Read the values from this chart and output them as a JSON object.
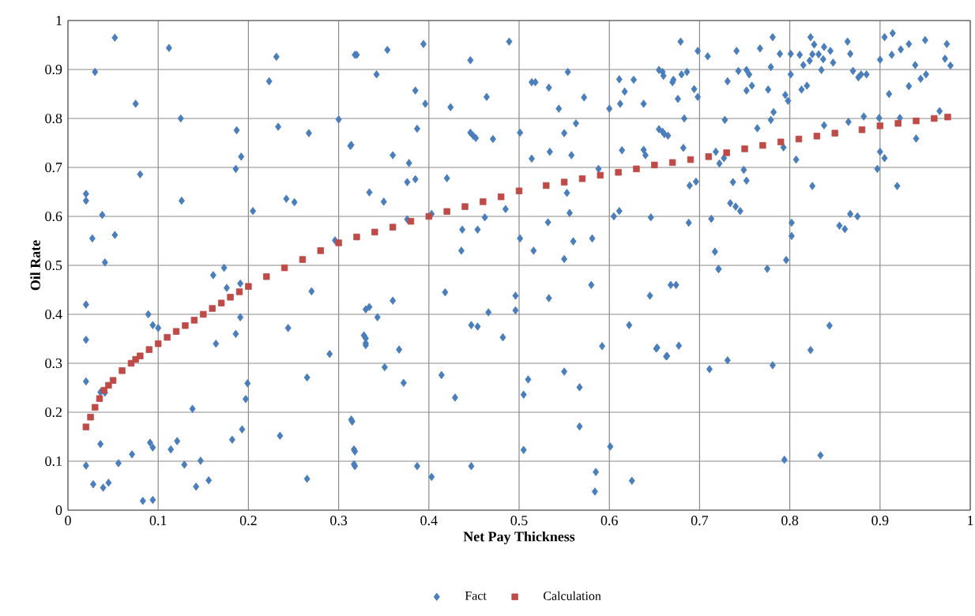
{
  "chart_data": {
    "type": "scatter",
    "xlabel": "Net Pay Thickness",
    "ylabel": "Oil Rate",
    "xlim": [
      0,
      1
    ],
    "ylim": [
      0,
      1
    ],
    "xticks": [
      0,
      0.1,
      0.2,
      0.3,
      0.4,
      0.5,
      0.6,
      0.7,
      0.8,
      0.9,
      1
    ],
    "yticks": [
      0,
      0.1,
      0.2,
      0.3,
      0.4,
      0.5,
      0.6,
      0.7,
      0.8,
      0.9,
      1
    ],
    "grid": true,
    "legend": "bottom",
    "series": [
      {
        "name": "Fact",
        "color": "#4a7ebb",
        "marker": "diamond",
        "x": [
          0.052,
          0.03,
          0.075,
          0.08,
          0.02,
          0.02,
          0.038,
          0.027,
          0.052,
          0.041,
          0.112,
          0.125,
          0.126,
          0.187,
          0.192,
          0.186,
          0.205,
          0.173,
          0.161,
          0.223,
          0.231,
          0.233,
          0.267,
          0.242,
          0.251,
          0.3,
          0.313,
          0.318,
          0.296,
          0.02,
          0.02,
          0.02,
          0.036,
          0.041,
          0.036,
          0.02,
          0.028,
          0.039,
          0.045,
          0.056,
          0.071,
          0.089,
          0.094,
          0.1,
          0.091,
          0.094,
          0.083,
          0.094,
          0.114,
          0.121,
          0.129,
          0.138,
          0.147,
          0.142,
          0.156,
          0.164,
          0.176,
          0.191,
          0.186,
          0.191,
          0.182,
          0.193,
          0.197,
          0.199,
          0.235,
          0.244,
          0.265,
          0.27,
          0.265,
          0.29,
          0.315,
          0.318,
          0.318,
          0.33,
          0.33,
          0.33,
          0.32,
          0.354,
          0.394,
          0.342,
          0.385,
          0.396,
          0.424,
          0.446,
          0.464,
          0.489,
          0.314,
          0.387,
          0.36,
          0.378,
          0.376,
          0.385,
          0.334,
          0.35,
          0.42,
          0.446,
          0.452,
          0.449,
          0.471,
          0.501,
          0.514,
          0.518,
          0.533,
          0.554,
          0.544,
          0.572,
          0.563,
          0.55,
          0.534,
          0.514,
          0.558,
          0.588,
          0.6,
          0.611,
          0.617,
          0.612,
          0.627,
          0.638,
          0.614,
          0.638,
          0.64,
          0.655,
          0.66,
          0.655,
          0.661,
          0.67,
          0.376,
          0.403,
          0.437,
          0.454,
          0.462,
          0.436,
          0.485,
          0.501,
          0.516,
          0.532,
          0.553,
          0.556,
          0.56,
          0.55,
          0.581,
          0.605,
          0.611,
          0.646,
          0.334,
          0.343,
          0.36,
          0.328,
          0.33,
          0.367,
          0.351,
          0.372,
          0.314,
          0.317,
          0.317,
          0.387,
          0.403,
          0.418,
          0.414,
          0.429,
          0.447,
          0.454,
          0.447,
          0.466,
          0.482,
          0.496,
          0.496,
          0.533,
          0.505,
          0.51,
          0.505,
          0.55,
          0.567,
          0.567,
          0.58,
          0.592,
          0.601,
          0.585,
          0.584,
          0.625,
          0.622,
          0.645,
          0.652,
          0.663,
          0.668,
          0.679,
          0.659,
          0.671,
          0.68,
          0.686,
          0.698,
          0.709,
          0.694,
          0.698,
          0.676,
          0.683,
          0.659,
          0.665,
          0.682,
          0.689,
          0.696,
          0.688,
          0.713,
          0.717,
          0.721,
          0.718,
          0.722,
          0.727,
          0.728,
          0.731,
          0.741,
          0.743,
          0.752,
          0.755,
          0.752,
          0.758,
          0.764,
          0.767,
          0.776,
          0.781,
          0.779,
          0.779,
          0.782,
          0.789,
          0.801,
          0.811,
          0.795,
          0.798,
          0.801,
          0.793,
          0.807,
          0.825,
          0.749,
          0.737,
          0.752,
          0.734,
          0.74,
          0.745,
          0.802,
          0.802,
          0.796,
          0.775,
          0.813,
          0.819,
          0.815,
          0.822,
          0.823,
          0.827,
          0.825,
          0.832,
          0.837,
          0.835,
          0.838,
          0.845,
          0.848,
          0.864,
          0.867,
          0.838,
          0.865,
          0.87,
          0.879,
          0.885,
          0.876,
          0.855,
          0.861,
          0.867,
          0.875,
          0.882,
          0.899,
          0.9,
          0.905,
          0.914,
          0.913,
          0.923,
          0.932,
          0.91,
          0.932,
          0.945,
          0.951,
          0.939,
          0.95,
          0.922,
          0.966,
          0.94,
          0.9,
          0.905,
          0.897,
          0.919,
          0.972,
          0.978,
          0.974,
          0.674,
          0.721,
          0.653,
          0.664,
          0.677,
          0.711,
          0.731,
          0.781,
          0.823,
          0.844,
          0.794,
          0.834
        ],
        "values": [
          0.965,
          0.895,
          0.83,
          0.686,
          0.646,
          0.632,
          0.603,
          0.555,
          0.562,
          0.506,
          0.944,
          0.8,
          0.632,
          0.776,
          0.722,
          0.697,
          0.611,
          0.495,
          0.48,
          0.876,
          0.926,
          0.783,
          0.77,
          0.636,
          0.629,
          0.798,
          0.744,
          0.93,
          0.551,
          0.42,
          0.348,
          0.263,
          0.241,
          0.24,
          0.135,
          0.091,
          0.053,
          0.046,
          0.056,
          0.096,
          0.114,
          0.4,
          0.378,
          0.372,
          0.138,
          0.128,
          0.019,
          0.021,
          0.124,
          0.141,
          0.093,
          0.207,
          0.101,
          0.048,
          0.061,
          0.34,
          0.454,
          0.463,
          0.36,
          0.394,
          0.144,
          0.165,
          0.227,
          0.259,
          0.152,
          0.372,
          0.271,
          0.447,
          0.064,
          0.319,
          0.181,
          0.12,
          0.09,
          0.41,
          0.351,
          0.337,
          0.93,
          0.94,
          0.952,
          0.89,
          0.857,
          0.83,
          0.823,
          0.919,
          0.844,
          0.957,
          0.746,
          0.779,
          0.725,
          0.709,
          0.67,
          0.676,
          0.649,
          0.63,
          0.678,
          0.771,
          0.76,
          0.765,
          0.758,
          0.771,
          0.874,
          0.874,
          0.863,
          0.895,
          0.82,
          0.843,
          0.79,
          0.77,
          0.732,
          0.718,
          0.725,
          0.697,
          0.82,
          0.88,
          0.855,
          0.83,
          0.879,
          0.83,
          0.735,
          0.736,
          0.725,
          0.899,
          0.887,
          0.778,
          0.768,
          0.874,
          0.594,
          0.605,
          0.573,
          0.573,
          0.598,
          0.53,
          0.615,
          0.555,
          0.53,
          0.588,
          0.648,
          0.607,
          0.549,
          0.513,
          0.555,
          0.6,
          0.611,
          0.598,
          0.415,
          0.394,
          0.428,
          0.357,
          0.341,
          0.328,
          0.292,
          0.26,
          0.185,
          0.124,
          0.094,
          0.09,
          0.068,
          0.445,
          0.276,
          0.23,
          0.378,
          0.375,
          0.09,
          0.404,
          0.353,
          0.438,
          0.408,
          0.433,
          0.236,
          0.267,
          0.123,
          0.283,
          0.251,
          0.171,
          0.46,
          0.335,
          0.13,
          0.078,
          0.038,
          0.06,
          0.378,
          0.438,
          0.33,
          0.314,
          0.46,
          0.957,
          0.895,
          0.879,
          0.89,
          0.895,
          0.938,
          0.927,
          0.86,
          0.844,
          0.84,
          0.8,
          0.773,
          0.765,
          0.74,
          0.663,
          0.671,
          0.587,
          0.595,
          0.528,
          0.493,
          0.732,
          0.708,
          0.719,
          0.797,
          0.876,
          0.938,
          0.897,
          0.899,
          0.89,
          0.857,
          0.867,
          0.78,
          0.943,
          0.859,
          0.966,
          0.905,
          0.797,
          0.813,
          0.932,
          0.932,
          0.93,
          0.848,
          0.836,
          0.89,
          0.741,
          0.716,
          0.662,
          0.695,
          0.67,
          0.673,
          0.627,
          0.62,
          0.611,
          0.587,
          0.56,
          0.511,
          0.493,
          0.859,
          0.867,
          0.909,
          0.918,
          0.966,
          0.951,
          0.931,
          0.931,
          0.921,
          0.899,
          0.946,
          0.938,
          0.914,
          0.957,
          0.932,
          0.786,
          0.793,
          0.897,
          0.89,
          0.89,
          0.884,
          0.581,
          0.574,
          0.605,
          0.6,
          0.804,
          0.801,
          0.92,
          0.966,
          0.974,
          0.93,
          0.941,
          0.952,
          0.85,
          0.866,
          0.881,
          0.89,
          0.909,
          0.96,
          0.801,
          0.815,
          0.759,
          0.732,
          0.719,
          0.697,
          0.662,
          0.922,
          0.908,
          0.952,
          0.46,
          0.492,
          0.332,
          0.315,
          0.336,
          0.288,
          0.306,
          0.296,
          0.327,
          0.377,
          0.103,
          0.112
        ]
      },
      {
        "name": "Calculation",
        "color": "#be4b48",
        "marker": "square",
        "x": [
          0.02,
          0.025,
          0.03,
          0.035,
          0.04,
          0.045,
          0.05,
          0.06,
          0.07,
          0.075,
          0.08,
          0.09,
          0.1,
          0.11,
          0.12,
          0.13,
          0.14,
          0.15,
          0.16,
          0.17,
          0.18,
          0.19,
          0.2,
          0.22,
          0.24,
          0.26,
          0.28,
          0.3,
          0.32,
          0.34,
          0.36,
          0.38,
          0.4,
          0.42,
          0.44,
          0.46,
          0.48,
          0.5,
          0.53,
          0.55,
          0.57,
          0.59,
          0.61,
          0.63,
          0.65,
          0.67,
          0.69,
          0.71,
          0.73,
          0.75,
          0.77,
          0.79,
          0.81,
          0.83,
          0.85,
          0.88,
          0.9,
          0.92,
          0.94,
          0.96,
          0.975
        ],
        "values": [
          0.17,
          0.19,
          0.21,
          0.228,
          0.245,
          0.255,
          0.265,
          0.285,
          0.3,
          0.308,
          0.315,
          0.328,
          0.34,
          0.353,
          0.365,
          0.377,
          0.388,
          0.4,
          0.412,
          0.423,
          0.435,
          0.446,
          0.457,
          0.477,
          0.495,
          0.512,
          0.53,
          0.546,
          0.558,
          0.568,
          0.578,
          0.59,
          0.6,
          0.61,
          0.62,
          0.63,
          0.64,
          0.652,
          0.663,
          0.67,
          0.677,
          0.684,
          0.69,
          0.697,
          0.705,
          0.71,
          0.716,
          0.722,
          0.73,
          0.738,
          0.745,
          0.752,
          0.758,
          0.764,
          0.77,
          0.777,
          0.785,
          0.79,
          0.795,
          0.8,
          0.803
        ]
      }
    ]
  }
}
